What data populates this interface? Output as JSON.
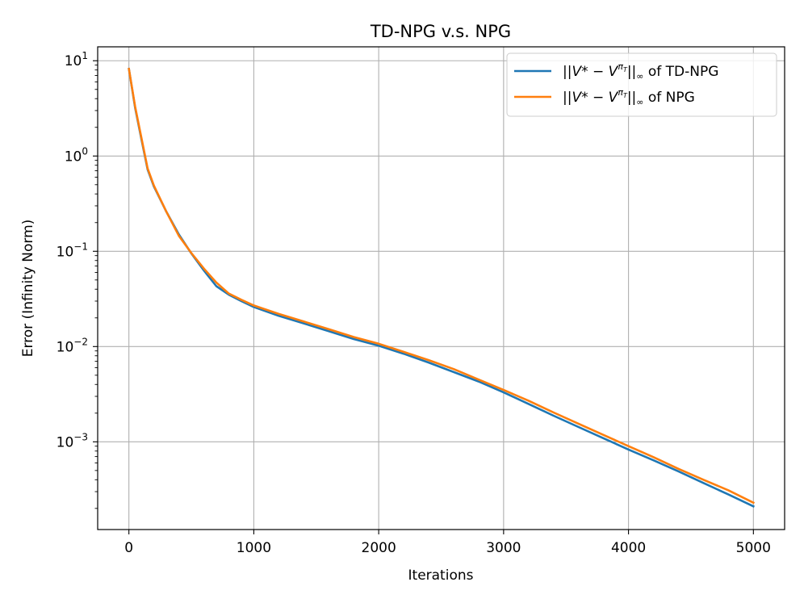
{
  "chart_data": {
    "type": "line",
    "title": "TD-NPG v.s. NPG",
    "xlabel": "Iterations",
    "ylabel": "Error (Infinity Norm)",
    "xlim": [
      -250,
      5250
    ],
    "ylim": [
      0.00012,
      14
    ],
    "yscale": "log",
    "grid": true,
    "legend_position": "top-right",
    "x_ticks": [
      0,
      1000,
      2000,
      3000,
      4000,
      5000
    ],
    "x_tick_labels": [
      "0",
      "1000",
      "2000",
      "3000",
      "4000",
      "5000"
    ],
    "y_ticks": [
      10,
      1,
      0.1,
      0.01,
      0.001
    ],
    "y_tick_labels": [
      {
        "base": "10",
        "exp": "1"
      },
      {
        "base": "10",
        "exp": "0"
      },
      {
        "base": "10",
        "exp": "−1"
      },
      {
        "base": "10",
        "exp": "−2"
      },
      {
        "base": "10",
        "exp": "−3"
      }
    ],
    "series": [
      {
        "name": "||V* − V^{π_T}||_∞ of TD-NPG",
        "legend": {
          "pre": "||",
          "v1": "V",
          "mid": "* − ",
          "v2": "V",
          "sup": "π",
          "supsub": "T",
          "post": "||",
          "sub": "∞",
          "tail": " of TD-NPG"
        },
        "color": "#1f77b4",
        "x": [
          0,
          50,
          100,
          150,
          200,
          300,
          400,
          500,
          600,
          700,
          800,
          900,
          1000,
          1200,
          1400,
          1600,
          1800,
          2000,
          2200,
          2400,
          2600,
          2800,
          3000,
          3200,
          3400,
          3600,
          3800,
          4000,
          4200,
          4400,
          4600,
          4800,
          5000
        ],
        "y": [
          8.2,
          3.2,
          1.5,
          0.72,
          0.48,
          0.26,
          0.15,
          0.095,
          0.063,
          0.043,
          0.035,
          0.03,
          0.026,
          0.021,
          0.0175,
          0.0145,
          0.012,
          0.0102,
          0.0084,
          0.0068,
          0.0054,
          0.0043,
          0.0033,
          0.0025,
          0.00188,
          0.00143,
          0.00109,
          0.00083,
          0.00064,
          0.00049,
          0.00037,
          0.00028,
          0.00021
        ]
      },
      {
        "name": "||V* − V^{π_T}||_∞ of NPG",
        "legend": {
          "pre": "||",
          "v1": "V",
          "mid": "* − ",
          "v2": "V",
          "sup": "π",
          "supsub": "T",
          "post": "||",
          "sub": "∞",
          "tail": " of NPG"
        },
        "color": "#ff7f0e",
        "x": [
          0,
          50,
          100,
          150,
          200,
          300,
          400,
          500,
          600,
          700,
          800,
          900,
          1000,
          1200,
          1400,
          1600,
          1800,
          2000,
          2200,
          2400,
          2600,
          2800,
          3000,
          3200,
          3400,
          3600,
          3800,
          4000,
          4200,
          4400,
          4600,
          4800,
          5000
        ],
        "y": [
          8.2,
          3.3,
          1.55,
          0.74,
          0.49,
          0.26,
          0.145,
          0.096,
          0.066,
          0.047,
          0.036,
          0.031,
          0.027,
          0.022,
          0.0183,
          0.0152,
          0.0126,
          0.0107,
          0.0088,
          0.0072,
          0.0058,
          0.0045,
          0.0035,
          0.0027,
          0.00203,
          0.00155,
          0.00118,
          0.0009,
          0.00069,
          0.00052,
          0.0004,
          0.00031,
          0.00023
        ]
      }
    ]
  }
}
